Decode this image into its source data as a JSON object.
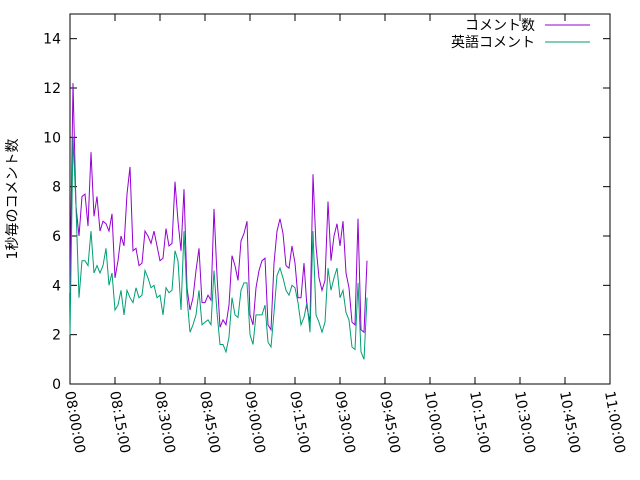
{
  "chart_data": {
    "type": "line",
    "title": "",
    "xlabel": "",
    "ylabel": "1秒毎のコメント数",
    "x_ticks": [
      "08:00:00",
      "08:15:00",
      "08:30:00",
      "08:45:00",
      "09:00:00",
      "09:15:00",
      "09:30:00",
      "09:45:00",
      "10:00:00",
      "10:15:00",
      "10:30:00",
      "10:45:00",
      "11:00:00"
    ],
    "y_ticks": [
      0,
      2,
      4,
      6,
      8,
      10,
      12,
      14
    ],
    "ylim": [
      0,
      15
    ],
    "grid": false,
    "legend_position": "top-right",
    "x_sample_interval": "00:01:00",
    "x_start": "08:00:00",
    "series": [
      {
        "name": "コメント数",
        "color": "#9400d3",
        "values": [
          3.7,
          12.2,
          7.2,
          6.0,
          7.6,
          7.7,
          6.4,
          9.4,
          6.8,
          7.6,
          6.2,
          6.6,
          6.5,
          6.2,
          6.9,
          4.3,
          5.0,
          6.0,
          5.6,
          7.7,
          8.8,
          5.4,
          5.5,
          4.8,
          4.9,
          6.2,
          6.0,
          5.7,
          6.2,
          5.6,
          5.0,
          5.1,
          6.3,
          5.6,
          5.7,
          8.2,
          6.6,
          5.4,
          7.9,
          3.9,
          3.0,
          3.5,
          4.6,
          5.5,
          3.3,
          3.3,
          3.6,
          3.4,
          7.1,
          4.4,
          2.3,
          2.6,
          2.4,
          3.2,
          5.2,
          4.8,
          4.2,
          5.8,
          6.1,
          6.6,
          2.8,
          2.4,
          3.9,
          4.6,
          5.0,
          5.1,
          2.4,
          2.2,
          4.9,
          6.2,
          6.7,
          6.1,
          4.8,
          4.7,
          5.6,
          4.9,
          3.5,
          3.5,
          4.9,
          3.1,
          2.5,
          8.5,
          5.6,
          4.3,
          3.8,
          4.2,
          7.4,
          5.0,
          6.0,
          6.5,
          5.6,
          6.6,
          4.5,
          3.9,
          2.5,
          2.4,
          6.7,
          2.2,
          2.1,
          5.0
        ]
      },
      {
        "name": "英語コメント",
        "color": "#009e73",
        "values": [
          2.0,
          10.0,
          7.2,
          3.5,
          5.0,
          5.0,
          4.8,
          6.2,
          4.5,
          4.8,
          4.5,
          4.8,
          5.5,
          4.0,
          4.5,
          3.0,
          3.2,
          3.8,
          2.8,
          3.8,
          3.5,
          3.3,
          3.9,
          3.5,
          3.6,
          4.6,
          4.3,
          3.9,
          4.0,
          3.5,
          3.6,
          2.8,
          3.9,
          3.7,
          3.8,
          5.4,
          5.0,
          3.0,
          6.2,
          3.5,
          2.1,
          2.4,
          2.8,
          3.8,
          2.4,
          2.5,
          2.6,
          2.4,
          4.6,
          2.9,
          1.6,
          1.6,
          1.3,
          1.9,
          3.5,
          2.8,
          2.7,
          3.8,
          4.1,
          4.1,
          2.0,
          1.6,
          2.8,
          2.8,
          2.8,
          3.2,
          1.7,
          1.5,
          2.9,
          4.4,
          4.7,
          4.3,
          3.8,
          3.6,
          4.0,
          3.9,
          3.3,
          2.4,
          2.7,
          3.3,
          2.1,
          6.2,
          2.8,
          2.5,
          2.1,
          2.5,
          4.7,
          3.8,
          4.3,
          4.7,
          3.5,
          3.8,
          2.9,
          2.6,
          1.5,
          1.4,
          4.1,
          1.3,
          1.0,
          3.5
        ]
      }
    ]
  }
}
